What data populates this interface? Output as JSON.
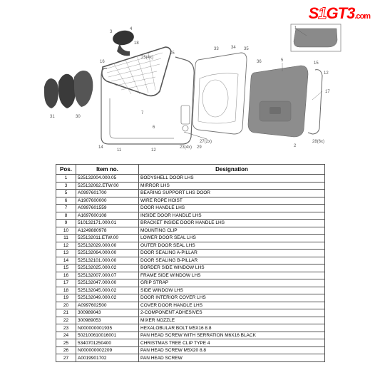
{
  "brand": {
    "left": "S",
    "mid": "1",
    "right": "GT3",
    "suffix": ".com"
  },
  "table": {
    "headers": {
      "pos": "Pos.",
      "item": "Item no.",
      "desig": "Designation"
    },
    "rows": [
      {
        "pos": "1",
        "item": "525132004.000.05",
        "desig": "BODYSHELL DOOR LHS"
      },
      {
        "pos": "3",
        "item": "525132062.ETW.00",
        "desig": "MIRROR LHS"
      },
      {
        "pos": "5",
        "item": "A0997601700",
        "desig": "BEARING SUPPORT LHS DOOR"
      },
      {
        "pos": "6",
        "item": "A1907600000",
        "desig": "WIRE ROPE HOIST"
      },
      {
        "pos": "7",
        "item": "A0997601559",
        "desig": "DOOR HANDLE LHS"
      },
      {
        "pos": "8",
        "item": "A1697600108",
        "desig": "INSIDE DOOR HANDLE LHS"
      },
      {
        "pos": "9",
        "item": "510132171.000.01",
        "desig": "BRACKET INSIDE DOOR HANDLE LHS"
      },
      {
        "pos": "10",
        "item": "A1249880978",
        "desig": "MOUNTING CLIP"
      },
      {
        "pos": "11",
        "item": "525132011.ETW.00",
        "desig": "LOWER DOOR SEAL LHS"
      },
      {
        "pos": "12",
        "item": "525132029.000.00",
        "desig": "OUTER DOOR SEAL LHS"
      },
      {
        "pos": "13",
        "item": "525132064.000.00",
        "desig": "DOOR SEALING A-PILLAR"
      },
      {
        "pos": "14",
        "item": "525132101.000.00",
        "desig": "DOOR SEALING B-PILLAR"
      },
      {
        "pos": "15",
        "item": "525132025.000.02",
        "desig": "BORDER SIDE WINDOW LHS"
      },
      {
        "pos": "16",
        "item": "525132007.000.07",
        "desig": "FRAME SIDE WINDOW LHS"
      },
      {
        "pos": "17",
        "item": "525132047.000.00",
        "desig": "GRIP STRAP"
      },
      {
        "pos": "18",
        "item": "525132045.000.02",
        "desig": "SIDE WINDOW LHS"
      },
      {
        "pos": "19",
        "item": "525132049.000.02",
        "desig": "DOOR INTERIOR COVER LHS"
      },
      {
        "pos": "20",
        "item": "A0997602500",
        "desig": "COVER DOOR HANDLE LHS"
      },
      {
        "pos": "21",
        "item": "300989043",
        "desig": "2-COMPONENT ADHESIVES"
      },
      {
        "pos": "22",
        "item": "300989053",
        "desig": "MIXER NOZZLE"
      },
      {
        "pos": "23",
        "item": "N000000001935",
        "desig": "HEXALOBULAR BOLT M5X16 8.8"
      },
      {
        "pos": "24",
        "item": "502100610016001",
        "desig": "PAN HEAD SCREW WITH SERRATION M6X16 BLACK"
      },
      {
        "pos": "25",
        "item": "5340701250400",
        "desig": "CHRISTMAS TREE CLIP TYPE 4"
      },
      {
        "pos": "26",
        "item": "N000000002209",
        "desig": "PAN HEAD SCREW M5X20 8.8"
      },
      {
        "pos": "27",
        "item": "A0019901702",
        "desig": "PAN HEAD SCREW"
      }
    ]
  },
  "diagram": {
    "mirror_color": "#3a3a3a",
    "frame_color": "#666",
    "cutout_color": "#888",
    "door_skin_color": "#8d8d8d",
    "trim_color": "#8f8f8f",
    "label_color": "#555",
    "pad_colors": [
      "#444",
      "#3a3a3a",
      "#555"
    ]
  }
}
